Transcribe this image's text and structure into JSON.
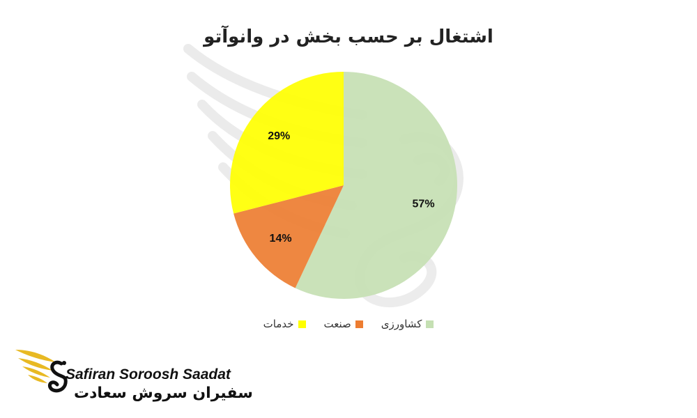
{
  "chart_data": {
    "type": "pie",
    "title": "اشتغال بر حسب بخش در وانوآتو",
    "categories": [
      "کشاورزی",
      "صنعت",
      "خدمات"
    ],
    "values": [
      57,
      14,
      29
    ],
    "labels": [
      "57%",
      "14%",
      "29%"
    ],
    "colors": [
      "#c5e0b3",
      "#ed7d31",
      "#ffff00"
    ],
    "legend_position": "bottom"
  },
  "logo": {
    "name_en": "Safiran Soroosh Saadat",
    "name_fa": "سفیران سروش سعادت",
    "icon": "gold-wing-swan-icon"
  }
}
